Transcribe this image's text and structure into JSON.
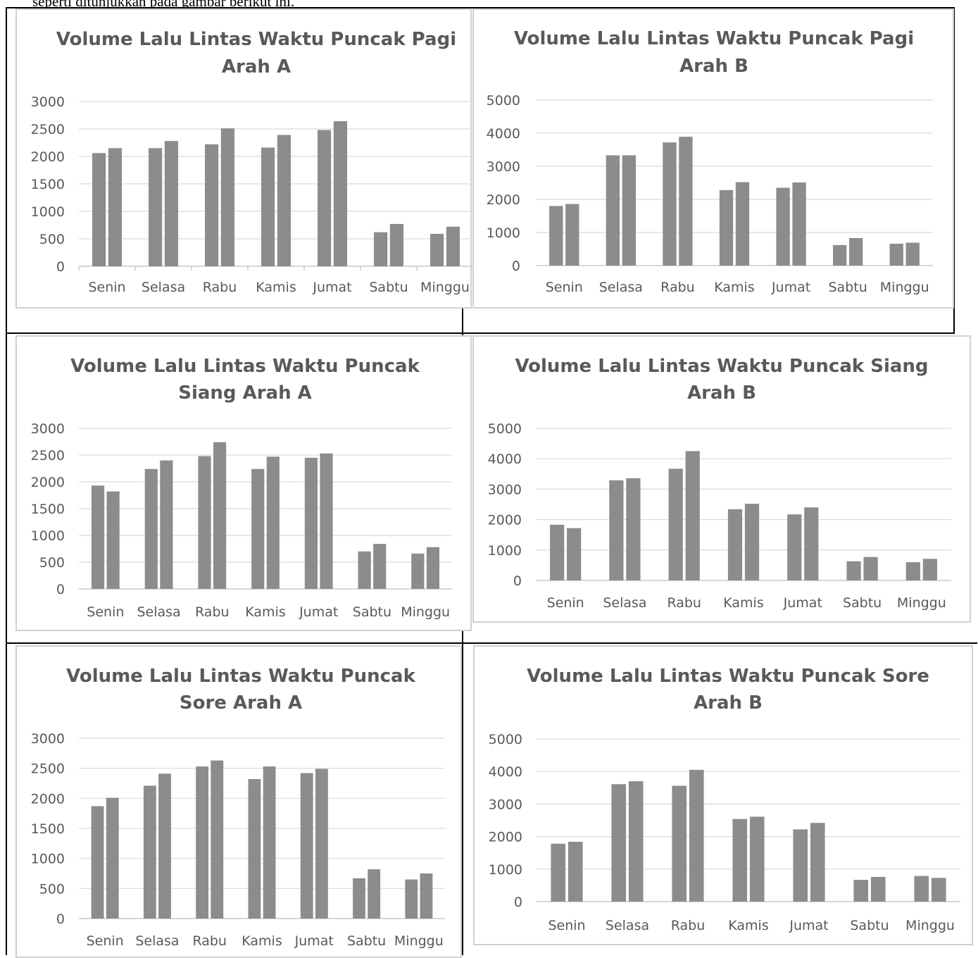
{
  "caption": "seperti ditunjukkan pada gambar berikut ini.",
  "colors": {
    "bar": "#8c8c8c",
    "grid": "#d9d9d9",
    "text": "#595959",
    "border": "#d0d0d0"
  },
  "chart_data": [
    {
      "type": "bar",
      "title": [
        "Volume Lalu Lintas Waktu Puncak Pagi",
        "Arah A"
      ],
      "categories": [
        "Senin",
        "Selasa",
        "Rabu",
        "Kamis",
        "Jumat",
        "Sabtu",
        "Minggu"
      ],
      "series": [
        {
          "values": [
            2060,
            2150,
            2220,
            2160,
            2480,
            620,
            590
          ]
        },
        {
          "values": [
            2150,
            2280,
            2510,
            2390,
            2640,
            770,
            720
          ]
        }
      ],
      "ylim": [
        0,
        3000
      ],
      "yticks": [
        0,
        500,
        1000,
        1500,
        2000,
        2500,
        3000
      ],
      "grid": true
    },
    {
      "type": "bar",
      "title": [
        "Volume Lalu Lintas Waktu Puncak Pagi",
        "Arah B"
      ],
      "categories": [
        "Senin",
        "Selasa",
        "Rabu",
        "Kamis",
        "Jumat",
        "Sabtu",
        "Minggu"
      ],
      "series": [
        {
          "values": [
            1800,
            3330,
            3720,
            2280,
            2350,
            620,
            660
          ]
        },
        {
          "values": [
            1860,
            3330,
            3890,
            2520,
            2510,
            830,
            690
          ]
        }
      ],
      "ylim": [
        0,
        5000
      ],
      "yticks": [
        0,
        1000,
        2000,
        3000,
        4000,
        5000
      ],
      "grid": true
    },
    {
      "type": "bar",
      "title": [
        "Volume Lalu Lintas Waktu Puncak",
        "Siang Arah A"
      ],
      "categories": [
        "Senin",
        "Selasa",
        "Rabu",
        "Kamis",
        "Jumat",
        "Sabtu",
        "Minggu"
      ],
      "series": [
        {
          "values": [
            1930,
            2240,
            2480,
            2240,
            2450,
            700,
            660
          ]
        },
        {
          "values": [
            1820,
            2400,
            2740,
            2470,
            2530,
            840,
            780
          ]
        }
      ],
      "ylim": [
        0,
        3000
      ],
      "yticks": [
        0,
        500,
        1000,
        1500,
        2000,
        2500,
        3000
      ],
      "grid": true
    },
    {
      "type": "bar",
      "title": [
        "Volume Lalu Lintas Waktu Puncak Siang",
        "Arah B"
      ],
      "categories": [
        "Senin",
        "Selasa",
        "Rabu",
        "Kamis",
        "Jumat",
        "Sabtu",
        "Minggu"
      ],
      "series": [
        {
          "values": [
            1830,
            3290,
            3670,
            2340,
            2170,
            630,
            600
          ]
        },
        {
          "values": [
            1720,
            3360,
            4250,
            2520,
            2400,
            770,
            710
          ]
        }
      ],
      "ylim": [
        0,
        5000
      ],
      "yticks": [
        0,
        1000,
        2000,
        3000,
        4000,
        5000
      ],
      "grid": true
    },
    {
      "type": "bar",
      "title": [
        "Volume Lalu Lintas Waktu Puncak",
        "Sore Arah A"
      ],
      "categories": [
        "Senin",
        "Selasa",
        "Rabu",
        "Kamis",
        "Jumat",
        "Sabtu",
        "Minggu"
      ],
      "series": [
        {
          "values": [
            1870,
            2210,
            2530,
            2320,
            2420,
            670,
            650
          ]
        },
        {
          "values": [
            2010,
            2410,
            2630,
            2530,
            2490,
            820,
            750
          ]
        }
      ],
      "ylim": [
        0,
        3000
      ],
      "yticks": [
        0,
        500,
        1000,
        1500,
        2000,
        2500,
        3000
      ],
      "grid": true
    },
    {
      "type": "bar",
      "title": [
        "Volume Lalu Lintas Waktu Puncak Sore",
        "Arah B"
      ],
      "categories": [
        "Senin",
        "Selasa",
        "Rabu",
        "Kamis",
        "Jumat",
        "Sabtu",
        "Minggu"
      ],
      "series": [
        {
          "values": [
            1780,
            3610,
            3560,
            2540,
            2220,
            670,
            790
          ]
        },
        {
          "values": [
            1840,
            3700,
            4050,
            2610,
            2420,
            760,
            730
          ]
        }
      ],
      "ylim": [
        0,
        5000
      ],
      "yticks": [
        0,
        1000,
        2000,
        3000,
        4000,
        5000
      ],
      "grid": true
    }
  ]
}
